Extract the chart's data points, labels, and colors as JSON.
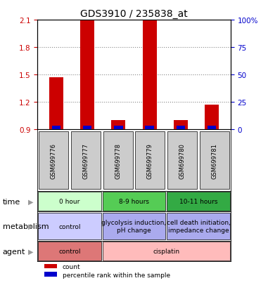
{
  "title": "GDS3910 / 235838_at",
  "samples": [
    "GSM699776",
    "GSM699777",
    "GSM699778",
    "GSM699779",
    "GSM699780",
    "GSM699781"
  ],
  "red_values": [
    1.47,
    2.1,
    1.0,
    2.1,
    1.0,
    1.17
  ],
  "blue_values": [
    0.94,
    0.94,
    0.94,
    0.94,
    0.94,
    0.94
  ],
  "bar_bottom": 0.9,
  "ylim_left": [
    0.9,
    2.1
  ],
  "ylim_right": [
    0,
    100
  ],
  "yticks_left": [
    0.9,
    1.2,
    1.5,
    1.8,
    2.1
  ],
  "yticks_right": [
    0,
    25,
    50,
    75,
    100
  ],
  "ytick_labels_left": [
    "0.9",
    "1.2",
    "1.5",
    "1.8",
    "2.1"
  ],
  "ytick_labels_right": [
    "0",
    "25",
    "50",
    "75",
    "100%"
  ],
  "left_tick_color": "#cc0000",
  "right_tick_color": "#0000cc",
  "red_bar_color": "#cc0000",
  "blue_bar_color": "#0000cc",
  "plot_bg": "#ffffff",
  "sample_box_bg": "#cccccc",
  "time_groups": [
    {
      "label": "0 hour",
      "span": [
        0,
        2
      ],
      "color": "#ccffcc"
    },
    {
      "label": "8-9 hours",
      "span": [
        2,
        4
      ],
      "color": "#55cc55"
    },
    {
      "label": "10-11 hours",
      "span": [
        4,
        6
      ],
      "color": "#33aa44"
    }
  ],
  "metabolism_groups": [
    {
      "label": "control",
      "span": [
        0,
        2
      ],
      "color": "#ccccff"
    },
    {
      "label": "glycolysis induction,\npH change",
      "span": [
        2,
        4
      ],
      "color": "#aaaaee"
    },
    {
      "label": "cell death initiation,\nimpedance change",
      "span": [
        4,
        6
      ],
      "color": "#aaaaee"
    }
  ],
  "agent_groups": [
    {
      "label": "control",
      "span": [
        0,
        2
      ],
      "color": "#dd7777"
    },
    {
      "label": "cisplatin",
      "span": [
        2,
        6
      ],
      "color": "#ffbbbb"
    }
  ],
  "row_labels": [
    "time",
    "metabolism",
    "agent"
  ],
  "legend_red": "count",
  "legend_blue": "percentile rank within the sample",
  "dotted_line_color": "#888888",
  "border_color": "#000000"
}
